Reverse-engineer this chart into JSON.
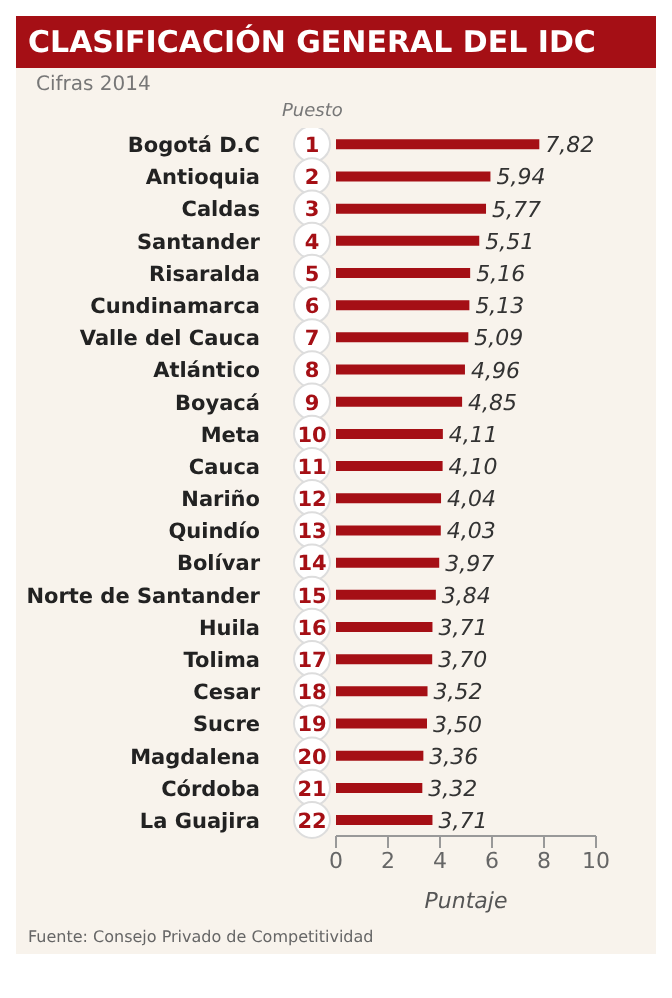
{
  "chart_data": {
    "type": "bar",
    "orientation": "horizontal",
    "title": "CLASIFICACIÓN GENERAL DEL IDC",
    "subtitle": "Cifras 2014",
    "xlabel": "Puntaje",
    "categories": [
      "Bogotá D.C",
      "Antioquia",
      "Caldas",
      "Santander",
      "Risaralda",
      "Cundinamarca",
      "Valle del Cauca",
      "Atlántico",
      "Boyacá",
      "Meta",
      "Cauca",
      "Nariño",
      "Quindío",
      "Bolívar",
      "Norte de Santander",
      "Huila",
      "Tolima",
      "Cesar",
      "Sucre",
      "Magdalena",
      "Córdoba",
      "La Guajira"
    ],
    "values": [
      7.82,
      5.94,
      5.77,
      5.51,
      5.16,
      5.13,
      5.09,
      4.96,
      4.85,
      4.11,
      4.1,
      4.04,
      4.03,
      3.97,
      3.84,
      3.71,
      3.7,
      3.52,
      3.5,
      3.36,
      3.32,
      3.71
    ],
    "value_labels": [
      "7,82",
      "5,94",
      "5,77",
      "5,51",
      "5,16",
      "5,13",
      "5,09",
      "4,96",
      "4,85",
      "4,11",
      "4,10",
      "4,04",
      "4,03",
      "3,97",
      "3,84",
      "3,71",
      "3,70",
      "3,52",
      "3,50",
      "3,36",
      "3,32",
      "3,71"
    ],
    "color": "#a50f15",
    "xlim": [
      0,
      10
    ],
    "xticks": [
      0,
      2,
      4,
      6,
      8,
      10
    ],
    "grid": false,
    "annotations": [
      "Puesto",
      "Fuente: Consejo Privado de Competitividad",
      {
        "text": "1",
        "y": "Bogotá D.C"
      },
      {
        "text": "2",
        "y": "Antioquia"
      },
      {
        "text": "3",
        "y": "Caldas"
      },
      {
        "text": "4",
        "y": "Santander"
      },
      {
        "text": "5",
        "y": "Risaralda"
      },
      {
        "text": "6",
        "y": "Cundinamarca"
      },
      {
        "text": "7",
        "y": "Valle del Cauca"
      },
      {
        "text": "8",
        "y": "Atlántico"
      },
      {
        "text": "9",
        "y": "Boyacá"
      },
      {
        "text": "10",
        "y": "Meta"
      },
      {
        "text": "11",
        "y": "Cauca"
      },
      {
        "text": "12",
        "y": "Nariño"
      },
      {
        "text": "13",
        "y": "Quindío"
      },
      {
        "text": "14",
        "y": "Bolívar"
      },
      {
        "text": "15",
        "y": "Norte de Santander"
      },
      {
        "text": "16",
        "y": "Huila"
      },
      {
        "text": "17",
        "y": "Tolima"
      },
      {
        "text": "18",
        "y": "Cesar"
      },
      {
        "text": "19",
        "y": "Sucre"
      },
      {
        "text": "20",
        "y": "Magdalena"
      },
      {
        "text": "21",
        "y": "Córdoba"
      },
      {
        "text": "22",
        "y": "La Guajira"
      }
    ]
  }
}
